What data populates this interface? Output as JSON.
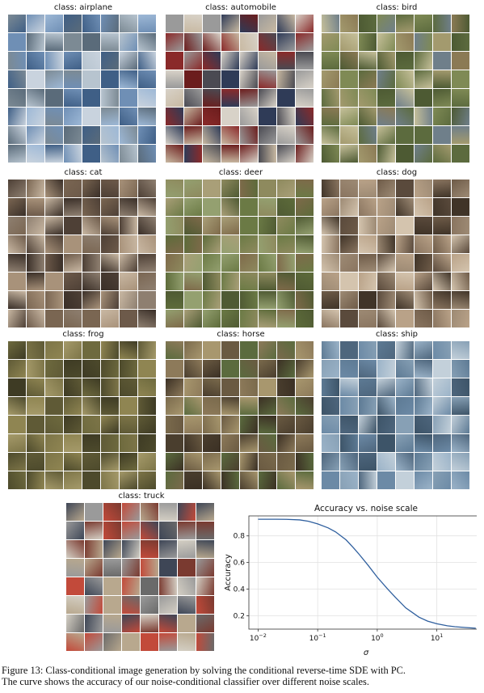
{
  "panels": [
    {
      "title": "class: airplane",
      "colors": [
        "#6f8fb5",
        "#9db8d6",
        "#5a6b7a",
        "#c9d3de",
        "#7c8a94",
        "#3f5f86",
        "#b7c4cf"
      ]
    },
    {
      "title": "class: automobile",
      "colors": [
        "#8a2a2a",
        "#4a4a52",
        "#c8b9a2",
        "#2f3b57",
        "#9a9a9a",
        "#6b1d1d",
        "#d8d2c8"
      ]
    },
    {
      "title": "class: bird",
      "colors": [
        "#7f8a55",
        "#a39a6e",
        "#5c6b3e",
        "#c6c09a",
        "#8b7a55",
        "#6f7f8a",
        "#4d5a33"
      ]
    },
    {
      "title": "class: cat",
      "colors": [
        "#7a6652",
        "#a8927a",
        "#4e4036",
        "#c9b8a3",
        "#6d5a4a",
        "#8e7f70",
        "#3a2f28"
      ]
    },
    {
      "title": "class: deer",
      "colors": [
        "#6b7a45",
        "#8e8a5e",
        "#4f5a33",
        "#a99f78",
        "#5d6b3a",
        "#7e6a4a",
        "#94a070"
      ]
    },
    {
      "title": "class: dog",
      "colors": [
        "#8a7560",
        "#b9a288",
        "#5a4a3c",
        "#d4c4ae",
        "#6e5b48",
        "#9d8a74",
        "#403428"
      ]
    },
    {
      "title": "class: frog",
      "colors": [
        "#6e6a3e",
        "#8f8552",
        "#4d4a2c",
        "#a59a6a",
        "#5f5a36",
        "#7d7548",
        "#3e3b24"
      ]
    },
    {
      "title": "class: horse",
      "colors": [
        "#6a5a42",
        "#8d7a5a",
        "#4a3e2e",
        "#a8976e",
        "#7a6a4c",
        "#5b6b3e",
        "#3b3024"
      ]
    },
    {
      "title": "class: ship",
      "colors": [
        "#6c8aa6",
        "#9bb3c8",
        "#4e667d",
        "#c3d0da",
        "#5d7a94",
        "#87a0b5",
        "#3d5468"
      ]
    },
    {
      "title": "class: truck",
      "colors": [
        "#7a3a30",
        "#9a9a9a",
        "#b8a88e",
        "#3e4656",
        "#c24a3a",
        "#6a6a6a",
        "#d4cfc4"
      ]
    }
  ],
  "chart_data": {
    "type": "line",
    "title": "Accuracy vs. noise scale",
    "xlabel": "σ",
    "ylabel": "Accuracy",
    "xscale": "log",
    "xlim": [
      0.007,
      60
    ],
    "ylim": [
      0.1,
      0.95
    ],
    "xticks": [
      {
        "value": 0.01,
        "base": "10",
        "exp": "−2"
      },
      {
        "value": 0.1,
        "base": "10",
        "exp": "−1"
      },
      {
        "value": 1,
        "base": "10",
        "exp": "0"
      },
      {
        "value": 10,
        "base": "10",
        "exp": "1"
      }
    ],
    "yticks": [
      0.2,
      0.4,
      0.6,
      0.8
    ],
    "grid": true,
    "line_color": "#2f5f9e",
    "x": [
      0.01,
      0.02,
      0.03,
      0.05,
      0.07,
      0.1,
      0.15,
      0.2,
      0.3,
      0.4,
      0.5,
      0.7,
      1.0,
      1.5,
      2.0,
      3.0,
      5.0,
      7.0,
      10.0,
      15.0,
      20.0,
      30.0,
      45.0
    ],
    "y": [
      0.925,
      0.925,
      0.924,
      0.92,
      0.91,
      0.89,
      0.86,
      0.83,
      0.77,
      0.71,
      0.66,
      0.58,
      0.49,
      0.4,
      0.34,
      0.26,
      0.19,
      0.16,
      0.14,
      0.125,
      0.118,
      0.112,
      0.107
    ]
  },
  "caption": {
    "line1": "Figure 13: Class-conditional image generation by solving the conditional reverse-time SDE with PC.",
    "line2": "The curve shows the accuracy of our noise-conditional classifier over different noise scales."
  }
}
